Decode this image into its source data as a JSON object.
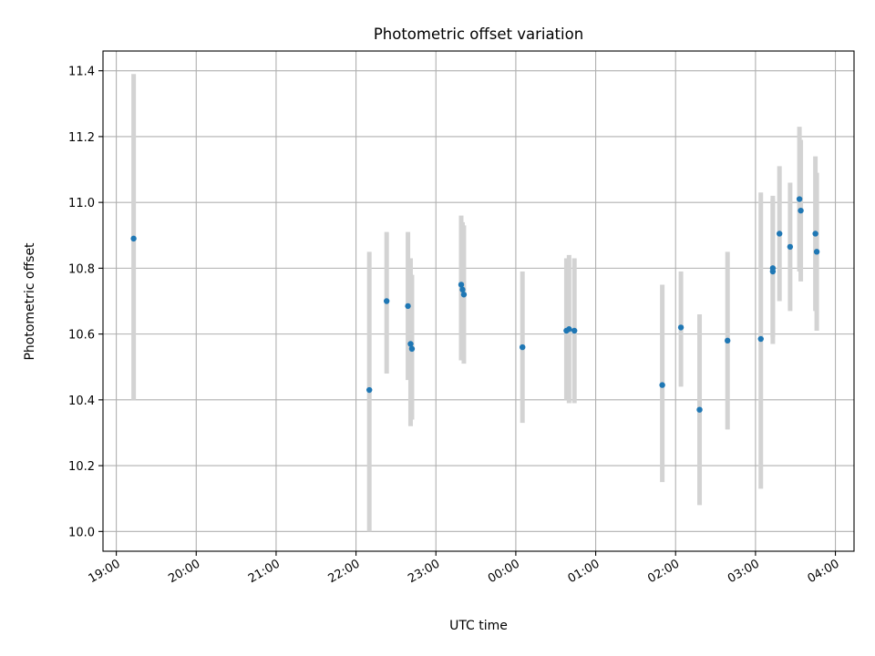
{
  "chart_data": {
    "type": "scatter",
    "title": "Photometric offset variation",
    "xlabel": "UTC time",
    "ylabel": "Photometric offset",
    "xlim": [
      "18:50",
      "04:14"
    ],
    "ylim": [
      9.94,
      11.46
    ],
    "xticks": [
      "19:00",
      "20:00",
      "21:00",
      "22:00",
      "23:00",
      "00:00",
      "01:00",
      "02:00",
      "03:00",
      "04:00"
    ],
    "yticks": [
      "10.0",
      "10.2",
      "10.4",
      "10.6",
      "10.8",
      "11.0",
      "11.2",
      "11.4"
    ],
    "grid": true,
    "marker_color": "#1f77b4",
    "errorbar_color": "#d3d3d3",
    "series": [
      {
        "points": [
          {
            "x": "19:13",
            "y": 10.89,
            "err_low": 10.4,
            "err_high": 11.39
          },
          {
            "x": "22:10",
            "y": 10.43,
            "err_low": 10.0,
            "err_high": 10.85
          },
          {
            "x": "22:23",
            "y": 10.7,
            "err_low": 10.48,
            "err_high": 10.91
          },
          {
            "x": "22:39",
            "y": 10.685,
            "err_low": 10.46,
            "err_high": 10.91
          },
          {
            "x": "22:41",
            "y": 10.57,
            "err_low": 10.32,
            "err_high": 10.83
          },
          {
            "x": "22:42",
            "y": 10.555,
            "err_low": 10.34,
            "err_high": 10.78
          },
          {
            "x": "23:19",
            "y": 10.75,
            "err_low": 10.52,
            "err_high": 10.96
          },
          {
            "x": "23:20",
            "y": 10.735,
            "err_low": 10.52,
            "err_high": 10.94
          },
          {
            "x": "23:21",
            "y": 10.72,
            "err_low": 10.51,
            "err_high": 10.93
          },
          {
            "x": "00:05",
            "y": 10.56,
            "err_low": 10.33,
            "err_high": 10.79
          },
          {
            "x": "00:38",
            "y": 10.61,
            "err_low": 10.4,
            "err_high": 10.83
          },
          {
            "x": "00:40",
            "y": 10.615,
            "err_low": 10.39,
            "err_high": 10.84
          },
          {
            "x": "00:44",
            "y": 10.61,
            "err_low": 10.39,
            "err_high": 10.83
          },
          {
            "x": "01:50",
            "y": 10.445,
            "err_low": 10.15,
            "err_high": 10.75
          },
          {
            "x": "02:04",
            "y": 10.62,
            "err_low": 10.44,
            "err_high": 10.79
          },
          {
            "x": "02:18",
            "y": 10.37,
            "err_low": 10.08,
            "err_high": 10.66
          },
          {
            "x": "02:39",
            "y": 10.58,
            "err_low": 10.31,
            "err_high": 10.85
          },
          {
            "x": "03:04",
            "y": 10.585,
            "err_low": 10.13,
            "err_high": 11.03
          },
          {
            "x": "03:13",
            "y": 10.79,
            "err_low": 10.57,
            "err_high": 11.02
          },
          {
            "x": "03:13",
            "y": 10.8,
            "err_low": 10.59,
            "err_high": 11.01
          },
          {
            "x": "03:18",
            "y": 10.905,
            "err_low": 10.7,
            "err_high": 11.11
          },
          {
            "x": "03:26",
            "y": 10.865,
            "err_low": 10.67,
            "err_high": 11.06
          },
          {
            "x": "03:33",
            "y": 11.01,
            "err_low": 10.79,
            "err_high": 11.23
          },
          {
            "x": "03:34",
            "y": 10.975,
            "err_low": 10.76,
            "err_high": 11.19
          },
          {
            "x": "03:45",
            "y": 10.905,
            "err_low": 10.67,
            "err_high": 11.14
          },
          {
            "x": "03:46",
            "y": 10.85,
            "err_low": 10.61,
            "err_high": 11.09
          }
        ]
      }
    ]
  }
}
